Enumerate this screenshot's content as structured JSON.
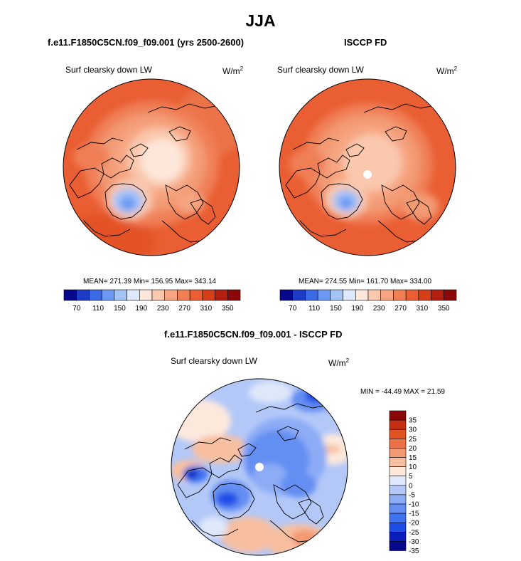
{
  "figure": {
    "title": "JJA",
    "panels": [
      {
        "title": "f.e11.F1850C5CN.f09_f09.001 (yrs 2500-2600)",
        "variable": "Surf clearsky down LW",
        "units": "W/m",
        "units_exp": "2",
        "stats": "MEAN= 271.39  Min= 156.95  Max= 343.14",
        "colorbar_ticks": [
          "70",
          "110",
          "150",
          "190",
          "230",
          "270",
          "310",
          "350"
        ]
      },
      {
        "title": "ISCCP FD",
        "variable": "Surf clearsky down LW",
        "units": "W/m",
        "units_exp": "2",
        "stats": "MEAN= 274.55  Min= 161.70  Max= 334.00",
        "colorbar_ticks": [
          "70",
          "110",
          "150",
          "190",
          "230",
          "270",
          "310",
          "350"
        ]
      },
      {
        "title": "f.e11.F1850C5CN.f09_f09.001 - ISCCP FD",
        "variable": "Surf clearsky down LW",
        "units": "W/m",
        "units_exp": "2",
        "stats": "MIN = -44.49 MAX =  21.59",
        "colorbar_ticks": [
          "35",
          "30",
          "25",
          "20",
          "15",
          "10",
          "5",
          "0",
          "-5",
          "-10",
          "-15",
          "-20",
          "-25",
          "-30",
          "-35"
        ]
      }
    ]
  },
  "colors": {
    "abs_scale": [
      "#08088c",
      "#1c3cc8",
      "#3a6ae6",
      "#6a98f2",
      "#a4c4f8",
      "#dce8fc",
      "#fde7da",
      "#f9c8ad",
      "#f6a481",
      "#f07f56",
      "#e95e32",
      "#d63d19",
      "#b32010",
      "#8c0808"
    ],
    "diff_scale": [
      "#08088c",
      "#0a1ebe",
      "#1e4ee6",
      "#3e72ee",
      "#648ef2",
      "#8cacf6",
      "#b4c8f8",
      "#dfe8fb",
      "#fde8dc",
      "#f7bfa0",
      "#f29a73",
      "#eb7346",
      "#e35225",
      "#c53014",
      "#8c0808"
    ]
  },
  "chart_data": [
    {
      "type": "heatmap",
      "projection": "north-polar-stereographic",
      "title": "f.e11.F1850C5CN.f09_f09.001 (yrs 2500-2600)",
      "variable": "Surf clearsky down LW",
      "units": "W/m2",
      "season": "JJA",
      "mean": 271.39,
      "min": 156.95,
      "max": 343.14,
      "color_levels": [
        70,
        90,
        110,
        130,
        150,
        170,
        190,
        210,
        230,
        250,
        270,
        290,
        310,
        330,
        350
      ],
      "colorbar_ticks": [
        70,
        110,
        150,
        190,
        230,
        270,
        310,
        350
      ]
    },
    {
      "type": "heatmap",
      "projection": "north-polar-stereographic",
      "title": "ISCCP FD",
      "variable": "Surf clearsky down LW",
      "units": "W/m2",
      "season": "JJA",
      "mean": 274.55,
      "min": 161.7,
      "max": 334.0,
      "color_levels": [
        70,
        90,
        110,
        130,
        150,
        170,
        190,
        210,
        230,
        250,
        270,
        290,
        310,
        330,
        350
      ],
      "colorbar_ticks": [
        70,
        110,
        150,
        190,
        230,
        270,
        310,
        350
      ]
    },
    {
      "type": "heatmap",
      "projection": "north-polar-stereographic",
      "title": "f.e11.F1850C5CN.f09_f09.001 - ISCCP FD",
      "variable": "Surf clearsky down LW",
      "units": "W/m2",
      "season": "JJA",
      "min": -44.49,
      "max": 21.59,
      "color_levels": [
        -35,
        -30,
        -25,
        -20,
        -15,
        -10,
        -5,
        0,
        5,
        10,
        15,
        20,
        25,
        30,
        35
      ],
      "colorbar_ticks": [
        35,
        30,
        25,
        20,
        15,
        10,
        5,
        0,
        -5,
        -10,
        -15,
        -20,
        -25,
        -30,
        -35
      ]
    }
  ]
}
